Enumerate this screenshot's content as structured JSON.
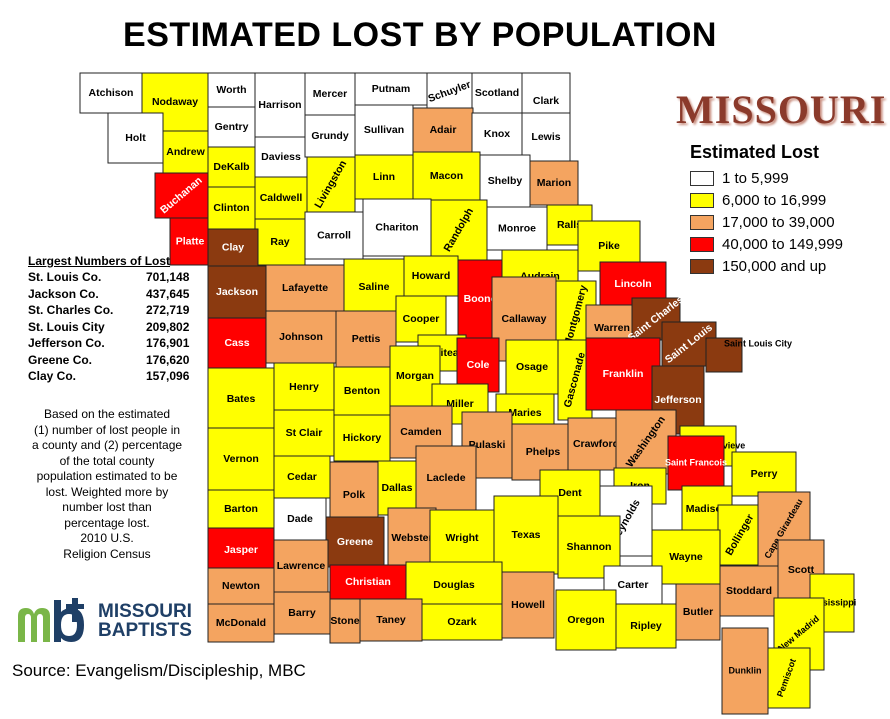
{
  "title": "ESTIMATED LOST BY POPULATION",
  "state": "MISSOURI",
  "legend": {
    "title": "Estimated Lost",
    "items": [
      {
        "label": "1 to 5,999",
        "color": "#ffffff"
      },
      {
        "label": "6,000 to 16,999",
        "color": "#ffff00"
      },
      {
        "label": "17,000 to 39,000",
        "color": "#f4a460"
      },
      {
        "label": "40,000 to 149,999",
        "color": "#ff0000"
      },
      {
        "label": "150,000 and up",
        "color": "#8b3a10"
      }
    ]
  },
  "largest": {
    "title": "Largest Numbers of Lost",
    "rows": [
      {
        "name": "St. Louis Co.",
        "value": "701,148"
      },
      {
        "name": "Jackson Co.",
        "value": "437,645"
      },
      {
        "name": "St. Charles Co.",
        "value": "272,719"
      },
      {
        "name": "St. Louis City",
        "value": "209,802"
      },
      {
        "name": "Jefferson Co.",
        "value": "176,901"
      },
      {
        "name": "Greene Co.",
        "value": "176,620"
      },
      {
        "name": "Clay Co.",
        "value": "157,096"
      }
    ]
  },
  "note": {
    "lines": [
      "Based on the estimated",
      "(1) number of lost people in",
      "a county and (2) percentage",
      "of the total county",
      "population estimated to be",
      "lost. Weighted more by",
      "number lost than",
      "percentage lost.",
      "2010 U.S.",
      "Religion Census"
    ]
  },
  "logo": {
    "line1": "MISSOURI",
    "line2": "BAPTISTS"
  },
  "source": "Source:  Evangelism/Discipleship,  MBC",
  "counties": [
    {
      "name": "Atchison",
      "cat": 0
    },
    {
      "name": "Nodaway",
      "cat": 1
    },
    {
      "name": "Worth",
      "cat": 0
    },
    {
      "name": "Harrison",
      "cat": 0
    },
    {
      "name": "Mercer",
      "cat": 0
    },
    {
      "name": "Putnam",
      "cat": 0
    },
    {
      "name": "Schuyler",
      "cat": 0
    },
    {
      "name": "Scotland",
      "cat": 0
    },
    {
      "name": "Clark",
      "cat": 0
    },
    {
      "name": "Holt",
      "cat": 0
    },
    {
      "name": "Andrew",
      "cat": 1
    },
    {
      "name": "Gentry",
      "cat": 0
    },
    {
      "name": "Daviess",
      "cat": 0
    },
    {
      "name": "Grundy",
      "cat": 0
    },
    {
      "name": "Sullivan",
      "cat": 0
    },
    {
      "name": "Adair",
      "cat": 2
    },
    {
      "name": "Knox",
      "cat": 0
    },
    {
      "name": "Lewis",
      "cat": 0
    },
    {
      "name": "Buchanan",
      "cat": 3
    },
    {
      "name": "DeKalb",
      "cat": 1
    },
    {
      "name": "Caldwell",
      "cat": 1
    },
    {
      "name": "Livingston",
      "cat": 1
    },
    {
      "name": "Linn",
      "cat": 1
    },
    {
      "name": "Macon",
      "cat": 1
    },
    {
      "name": "Shelby",
      "cat": 0
    },
    {
      "name": "Marion",
      "cat": 2
    },
    {
      "name": "Platte",
      "cat": 3
    },
    {
      "name": "Clinton",
      "cat": 1
    },
    {
      "name": "Ray",
      "cat": 1
    },
    {
      "name": "Carroll",
      "cat": 0
    },
    {
      "name": "Chariton",
      "cat": 0
    },
    {
      "name": "Randolph",
      "cat": 1
    },
    {
      "name": "Monroe",
      "cat": 0
    },
    {
      "name": "Ralls",
      "cat": 1
    },
    {
      "name": "Pike",
      "cat": 1
    },
    {
      "name": "Clay",
      "cat": 4
    },
    {
      "name": "Jackson",
      "cat": 4
    },
    {
      "name": "Lafayette",
      "cat": 2
    },
    {
      "name": "Saline",
      "cat": 1
    },
    {
      "name": "Howard",
      "cat": 1
    },
    {
      "name": "Boone",
      "cat": 3
    },
    {
      "name": "Audrain",
      "cat": 1
    },
    {
      "name": "Lincoln",
      "cat": 3
    },
    {
      "name": "Cass",
      "cat": 3
    },
    {
      "name": "Johnson",
      "cat": 2
    },
    {
      "name": "Pettis",
      "cat": 2
    },
    {
      "name": "Cooper",
      "cat": 1
    },
    {
      "name": "Moniteau",
      "cat": 1
    },
    {
      "name": "Callaway",
      "cat": 2
    },
    {
      "name": "Montgomery",
      "cat": 1
    },
    {
      "name": "Warren",
      "cat": 2
    },
    {
      "name": "Saint Charles",
      "cat": 4
    },
    {
      "name": "Saint Louis",
      "cat": 4
    },
    {
      "name": "Saint Louis City",
      "cat": 4
    },
    {
      "name": "Cole",
      "cat": 3
    },
    {
      "name": "Osage",
      "cat": 1
    },
    {
      "name": "Gasconade",
      "cat": 1
    },
    {
      "name": "Franklin",
      "cat": 3
    },
    {
      "name": "Jefferson",
      "cat": 4
    },
    {
      "name": "Bates",
      "cat": 1
    },
    {
      "name": "Henry",
      "cat": 1
    },
    {
      "name": "Benton",
      "cat": 1
    },
    {
      "name": "Morgan",
      "cat": 1
    },
    {
      "name": "Miller",
      "cat": 1
    },
    {
      "name": "Maries",
      "cat": 1
    },
    {
      "name": "St Clair",
      "cat": 1
    },
    {
      "name": "Hickory",
      "cat": 1
    },
    {
      "name": "Camden",
      "cat": 2
    },
    {
      "name": "Pulaski",
      "cat": 2
    },
    {
      "name": "Phelps",
      "cat": 2
    },
    {
      "name": "Crawford",
      "cat": 2
    },
    {
      "name": "Washington",
      "cat": 2
    },
    {
      "name": "Sainte Genevieve",
      "cat": 1
    },
    {
      "name": "Saint Francois",
      "cat": 3
    },
    {
      "name": "Perry",
      "cat": 1
    },
    {
      "name": "Vernon",
      "cat": 1
    },
    {
      "name": "Cedar",
      "cat": 1
    },
    {
      "name": "Polk",
      "cat": 2
    },
    {
      "name": "Dallas",
      "cat": 1
    },
    {
      "name": "Laclede",
      "cat": 2
    },
    {
      "name": "Dent",
      "cat": 1
    },
    {
      "name": "Iron",
      "cat": 1
    },
    {
      "name": "Reynolds",
      "cat": 0
    },
    {
      "name": "Madison",
      "cat": 1
    },
    {
      "name": "Bollinger",
      "cat": 1
    },
    {
      "name": "Cape Girardeau",
      "cat": 2
    },
    {
      "name": "Barton",
      "cat": 1
    },
    {
      "name": "Dade",
      "cat": 0
    },
    {
      "name": "Greene",
      "cat": 4
    },
    {
      "name": "Webster",
      "cat": 2
    },
    {
      "name": "Wright",
      "cat": 1
    },
    {
      "name": "Texas",
      "cat": 1
    },
    {
      "name": "Shannon",
      "cat": 1
    },
    {
      "name": "Wayne",
      "cat": 1
    },
    {
      "name": "Scott",
      "cat": 2
    },
    {
      "name": "Jasper",
      "cat": 3
    },
    {
      "name": "Lawrence",
      "cat": 2
    },
    {
      "name": "Christian",
      "cat": 3
    },
    {
      "name": "Douglas",
      "cat": 1
    },
    {
      "name": "Howell",
      "cat": 2
    },
    {
      "name": "Carter",
      "cat": 0
    },
    {
      "name": "Stoddard",
      "cat": 2
    },
    {
      "name": "Mississippi",
      "cat": 1
    },
    {
      "name": "Newton",
      "cat": 2
    },
    {
      "name": "Barry",
      "cat": 2
    },
    {
      "name": "Stone",
      "cat": 2
    },
    {
      "name": "Taney",
      "cat": 2
    },
    {
      "name": "Ozark",
      "cat": 1
    },
    {
      "name": "Oregon",
      "cat": 1
    },
    {
      "name": "Ripley",
      "cat": 1
    },
    {
      "name": "Butler",
      "cat": 2
    },
    {
      "name": "New Madrid",
      "cat": 1
    },
    {
      "name": "McDonald",
      "cat": 2
    },
    {
      "name": "Pemiscot",
      "cat": 1
    },
    {
      "name": "Dunklin",
      "cat": 2
    }
  ]
}
